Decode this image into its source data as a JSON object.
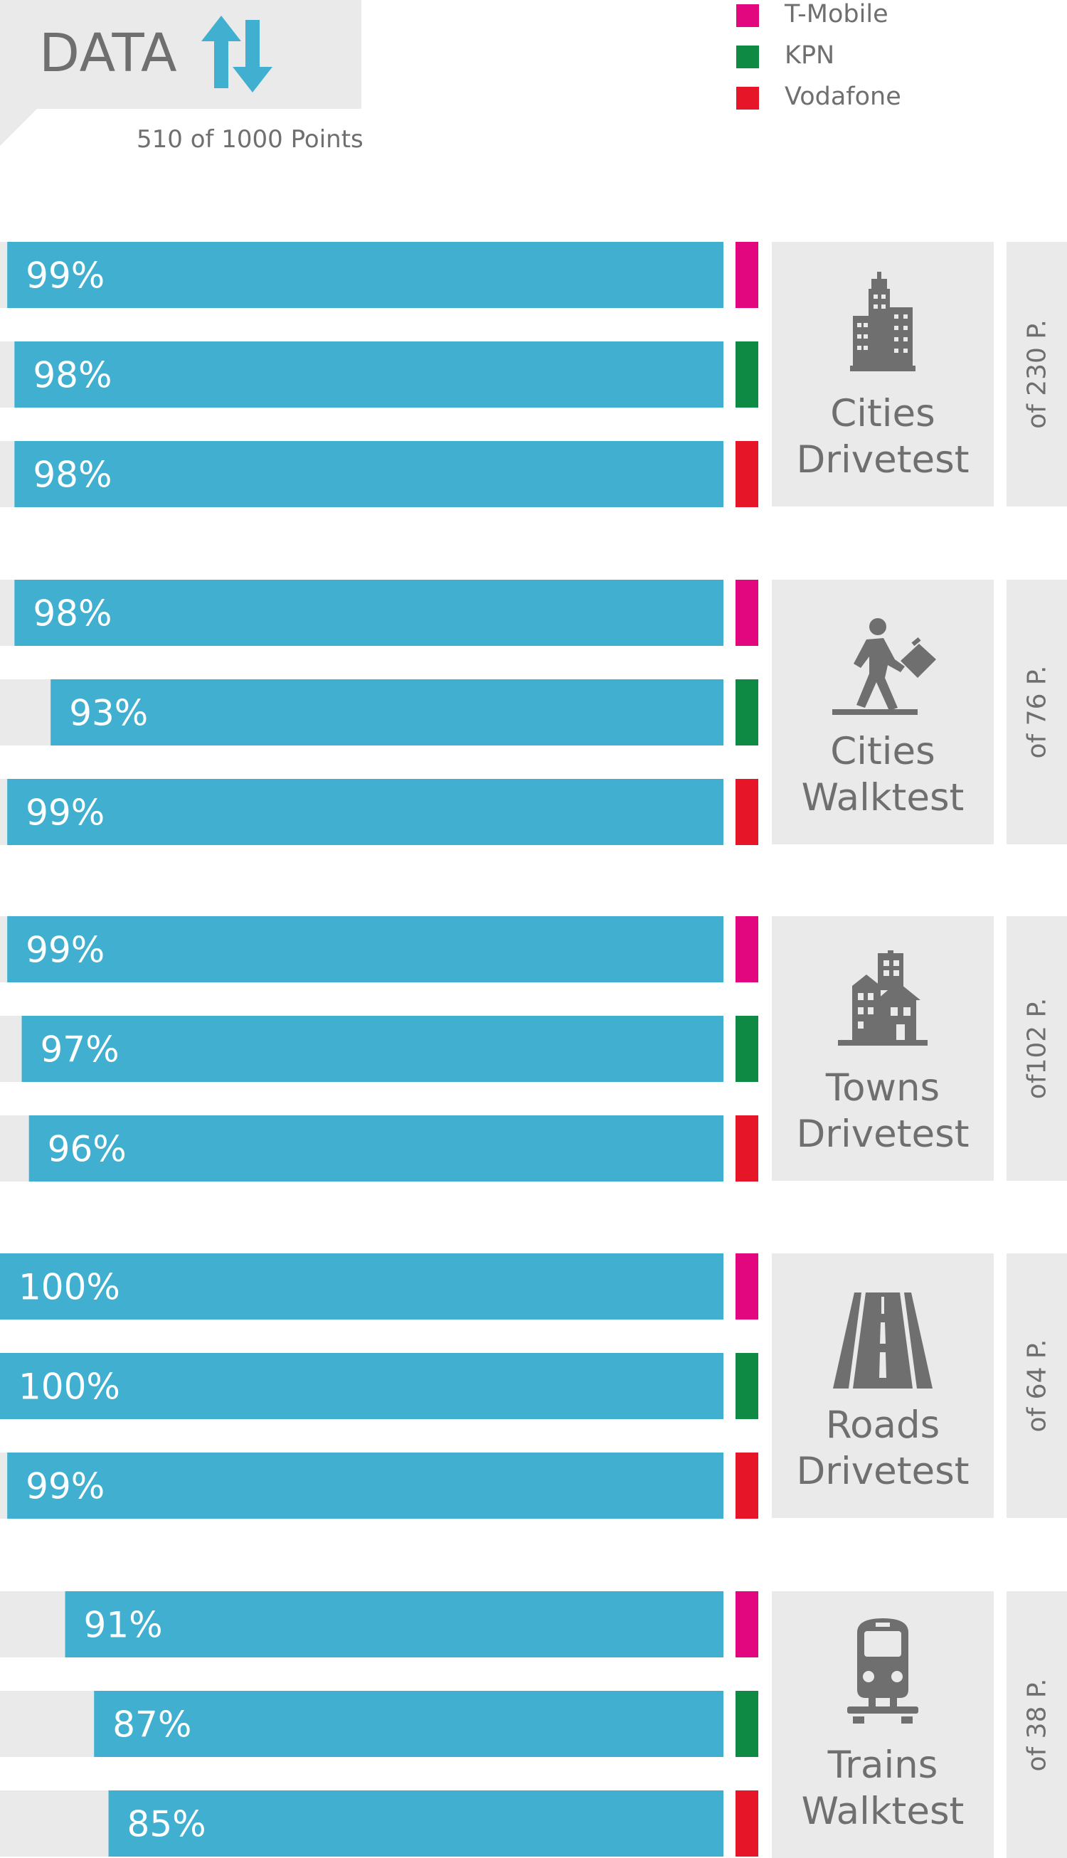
{
  "header": {
    "title": "DATA",
    "icon": "up-down-arrows-icon",
    "points": "510 of 1000 Points"
  },
  "legend": [
    {
      "label": "T-Mobile",
      "color": "#e2077f"
    },
    {
      "label": "KPN",
      "color": "#0f8a44"
    },
    {
      "label": "Vodafone",
      "color": "#e61528"
    }
  ],
  "colors": {
    "bar": "#41b0d0",
    "track": "#eaeaea",
    "panel": "#eaeaea",
    "text": "#6f6f6f"
  },
  "chart_data": {
    "type": "bar",
    "orientation": "horizontal",
    "xlim": [
      0,
      100
    ],
    "series": [
      {
        "name": "T-Mobile",
        "values": [
          99,
          98,
          99,
          100,
          91
        ]
      },
      {
        "name": "KPN",
        "values": [
          98,
          93,
          97,
          100,
          87
        ]
      },
      {
        "name": "Vodafone",
        "values": [
          98,
          99,
          96,
          99,
          85
        ]
      }
    ],
    "groups": [
      {
        "line1": "Cities",
        "line2": "Drivetest",
        "points": "of 230 P.",
        "icon": "city-buildings-icon",
        "labels": [
          "99%",
          "98%",
          "98%"
        ]
      },
      {
        "line1": "Cities",
        "line2": "Walktest",
        "points": "of 76 P.",
        "icon": "walking-person-icon",
        "labels": [
          "98%",
          "93%",
          "99%"
        ]
      },
      {
        "line1": "Towns",
        "line2": "Drivetest",
        "points": "of102 P.",
        "icon": "town-houses-icon",
        "labels": [
          "99%",
          "97%",
          "96%"
        ]
      },
      {
        "line1": "Roads",
        "line2": "Drivetest",
        "points": "of 64 P.",
        "icon": "road-icon",
        "labels": [
          "100%",
          "100%",
          "99%"
        ]
      },
      {
        "line1": "Trains",
        "line2": "Walktest",
        "points": "of 38 P.",
        "icon": "train-icon",
        "labels": [
          "91%",
          "87%",
          "85%"
        ]
      }
    ]
  }
}
